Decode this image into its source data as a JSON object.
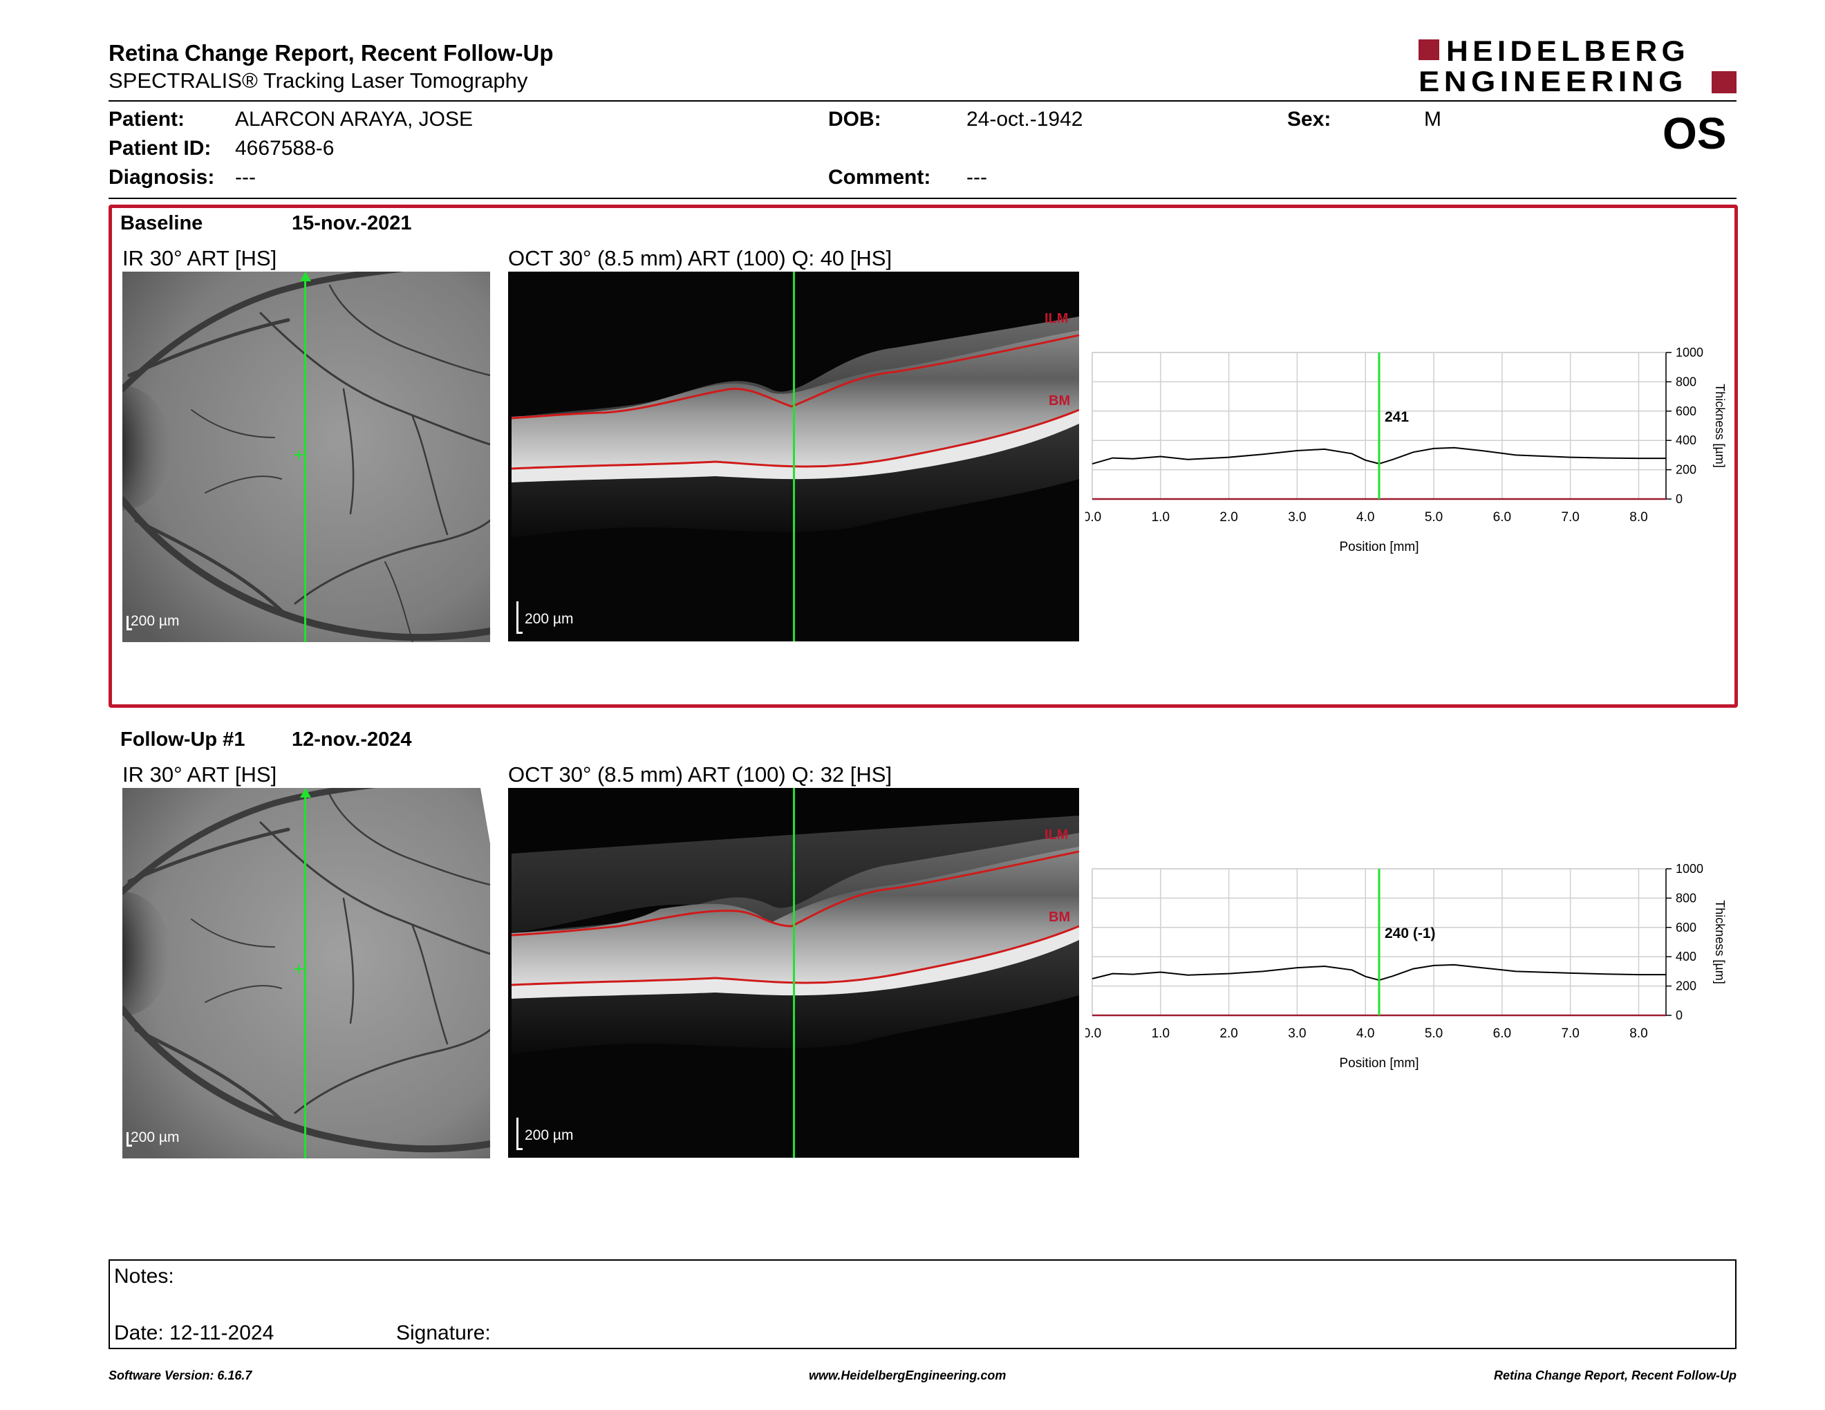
{
  "report": {
    "title": "Retina Change Report, Recent Follow-Up",
    "subtitle": "SPECTRALIS® Tracking Laser Tomography"
  },
  "logo": {
    "line1": "HEIDELBERG",
    "line2": "ENGINEERING",
    "brand_color": "#9b1b30"
  },
  "patient": {
    "name_label": "Patient:",
    "name": "ALARCON ARAYA, JOSE",
    "id_label": "Patient ID:",
    "id": "4667588-6",
    "diagnosis_label": "Diagnosis:",
    "diagnosis": "---",
    "dob_label": "DOB:",
    "dob": "24-oct.-1942",
    "comment_label": "Comment:",
    "comment": "---",
    "sex_label": "Sex:",
    "sex": "M",
    "eye": "OS"
  },
  "accent_color": "#c0172e",
  "scan_line_color": "#22e12e",
  "baseline": {
    "label": "Baseline",
    "date": "15-nov.-2021",
    "ir_title": "IR 30° ART [HS]",
    "ir_scale": "200 µm",
    "oct_title": "OCT 30° (8.5 mm) ART (100) Q: 40 [HS]",
    "oct_scale": "200 µm",
    "ilm_label": "ILM",
    "bm_label": "BM"
  },
  "followup": {
    "label": "Follow-Up #1",
    "date": "12-nov.-2024",
    "ir_title": "IR 30° ART [HS]",
    "ir_scale": "200 µm",
    "oct_title": "OCT 30° (8.5 mm) ART (100) Q: 32 [HS]",
    "oct_scale": "200 µm",
    "ilm_label": "ILM",
    "bm_label": "BM"
  },
  "chart_data": [
    {
      "type": "line",
      "xlabel": "Position [mm]",
      "ylabel": "Thickness [µm]",
      "xlim": [
        0,
        8.4
      ],
      "ylim": [
        0,
        1000
      ],
      "x_ticks": [
        "0.0",
        "1.0",
        "2.0",
        "3.0",
        "4.0",
        "5.0",
        "6.0",
        "7.0",
        "8.0"
      ],
      "y_ticks": [
        "0",
        "200",
        "400",
        "600",
        "800",
        "1000"
      ],
      "cursor_x": 4.2,
      "cursor_label": "241",
      "series": [
        {
          "x": [
            0.0,
            0.3,
            0.6,
            1.0,
            1.4,
            2.0,
            2.5,
            3.0,
            3.4,
            3.8,
            4.0,
            4.2,
            4.4,
            4.7,
            5.0,
            5.3,
            5.7,
            6.2,
            7.0,
            7.5,
            8.0,
            8.4
          ],
          "y": [
            240,
            280,
            275,
            290,
            270,
            285,
            305,
            330,
            340,
            310,
            265,
            241,
            270,
            320,
            345,
            350,
            330,
            300,
            285,
            280,
            278,
            278
          ]
        }
      ]
    },
    {
      "type": "line",
      "xlabel": "Position [mm]",
      "ylabel": "Thickness [µm]",
      "xlim": [
        0,
        8.4
      ],
      "ylim": [
        0,
        1000
      ],
      "x_ticks": [
        "0.0",
        "1.0",
        "2.0",
        "3.0",
        "4.0",
        "5.0",
        "6.0",
        "7.0",
        "8.0"
      ],
      "y_ticks": [
        "0",
        "200",
        "400",
        "600",
        "800",
        "1000"
      ],
      "cursor_x": 4.2,
      "cursor_label": "240 (-1)",
      "series": [
        {
          "x": [
            0.0,
            0.3,
            0.6,
            1.0,
            1.4,
            2.0,
            2.5,
            3.0,
            3.4,
            3.8,
            4.0,
            4.2,
            4.4,
            4.7,
            5.0,
            5.3,
            5.7,
            6.2,
            7.0,
            7.5,
            8.0,
            8.4
          ],
          "y": [
            250,
            285,
            280,
            295,
            275,
            285,
            300,
            325,
            335,
            310,
            265,
            240,
            268,
            318,
            340,
            345,
            325,
            300,
            288,
            282,
            278,
            278
          ]
        }
      ]
    }
  ],
  "notes": {
    "label": "Notes:",
    "date_label": "Date: 12-11-2024",
    "signature_label": "Signature:"
  },
  "footer": {
    "left": "Software Version: 6.16.7",
    "center": "www.HeidelbergEngineering.com",
    "right": "Retina Change Report, Recent Follow-Up"
  }
}
